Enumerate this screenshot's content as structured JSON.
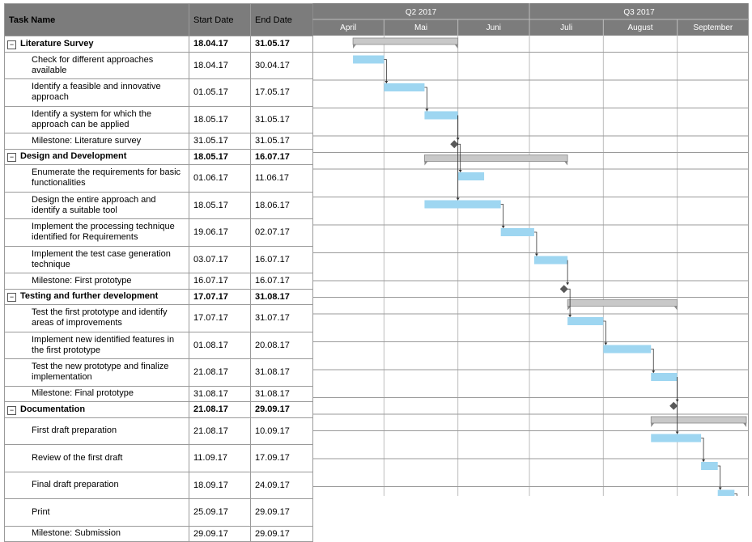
{
  "columns": {
    "task_name": "Task Name",
    "start_date": "Start Date",
    "end_date": "End Date"
  },
  "timeline": {
    "quarters": [
      "Q2 2017",
      "Q3 2017"
    ],
    "months": [
      "April",
      "Mai",
      "Juni",
      "Juli",
      "August",
      "September"
    ]
  },
  "colors": {
    "bar": "#9ed6f1",
    "summary": "#c8c8c8",
    "milestone": "#595959",
    "header": "#7c7c7c",
    "arrow": "#333333"
  },
  "icons": {
    "collapse": "minus-box-icon"
  },
  "tasks": [
    {
      "name": "Literature Survey",
      "start": "18.04.17",
      "end": "31.05.17",
      "type": "summary"
    },
    {
      "name": "Check for different approaches available",
      "start": "18.04.17",
      "end": "30.04.17",
      "type": "task"
    },
    {
      "name": "Identify a feasible and innovative approach",
      "start": "01.05.17",
      "end": "17.05.17",
      "type": "task"
    },
    {
      "name": "Identify a system for which the approach can be applied",
      "start": "18.05.17",
      "end": "31.05.17",
      "type": "task"
    },
    {
      "name": "Milestone: Literature survey",
      "start": "31.05.17",
      "end": "31.05.17",
      "type": "milestone"
    },
    {
      "name": "Design and Development",
      "start": "18.05.17",
      "end": "16.07.17",
      "type": "summary"
    },
    {
      "name": "Enumerate the requirements for basic functionalities",
      "start": "01.06.17",
      "end": "11.06.17",
      "type": "task"
    },
    {
      "name": "Design the entire approach and identify a suitable tool",
      "start": "18.05.17",
      "end": "18.06.17",
      "type": "task"
    },
    {
      "name": "Implement the processing technique identified for Requirements",
      "start": "19.06.17",
      "end": "02.07.17",
      "type": "task"
    },
    {
      "name": "Implement the test case generation technique",
      "start": "03.07.17",
      "end": "16.07.17",
      "type": "task"
    },
    {
      "name": "Milestone: First prototype",
      "start": "16.07.17",
      "end": "16.07.17",
      "type": "milestone"
    },
    {
      "name": "Testing and further development",
      "start": "17.07.17",
      "end": "31.08.17",
      "type": "summary"
    },
    {
      "name": "Test the first prototype and identify areas of improvements",
      "start": "17.07.17",
      "end": "31.07.17",
      "type": "task"
    },
    {
      "name": "Implement new identified features in the first prototype",
      "start": "01.08.17",
      "end": "20.08.17",
      "type": "task"
    },
    {
      "name": "Test the new prototype and finalize implementation",
      "start": "21.08.17",
      "end": "31.08.17",
      "type": "task"
    },
    {
      "name": "Milestone: Final prototype",
      "start": "31.08.17",
      "end": "31.08.17",
      "type": "milestone"
    },
    {
      "name": "Documentation",
      "start": "21.08.17",
      "end": "29.09.17",
      "type": "summary"
    },
    {
      "name": "First draft preparation",
      "start": "21.08.17",
      "end": "10.09.17",
      "type": "task"
    },
    {
      "name": "Review of the first draft",
      "start": "11.09.17",
      "end": "17.09.17",
      "type": "task"
    },
    {
      "name": "Final draft preparation",
      "start": "18.09.17",
      "end": "24.09.17",
      "type": "task"
    },
    {
      "name": "Print",
      "start": "25.09.17",
      "end": "29.09.17",
      "type": "task"
    },
    {
      "name": "Milestone: Submission",
      "start": "29.09.17",
      "end": "29.09.17",
      "type": "milestone"
    }
  ],
  "dependencies": [
    [
      1,
      2
    ],
    [
      2,
      3
    ],
    [
      3,
      4
    ],
    [
      4,
      6
    ],
    [
      3,
      7
    ],
    [
      7,
      8
    ],
    [
      8,
      9
    ],
    [
      9,
      10
    ],
    [
      10,
      12
    ],
    [
      12,
      13
    ],
    [
      13,
      14
    ],
    [
      14,
      15
    ],
    [
      14,
      17
    ],
    [
      17,
      18
    ],
    [
      18,
      19
    ],
    [
      19,
      20
    ],
    [
      20,
      21
    ]
  ]
}
